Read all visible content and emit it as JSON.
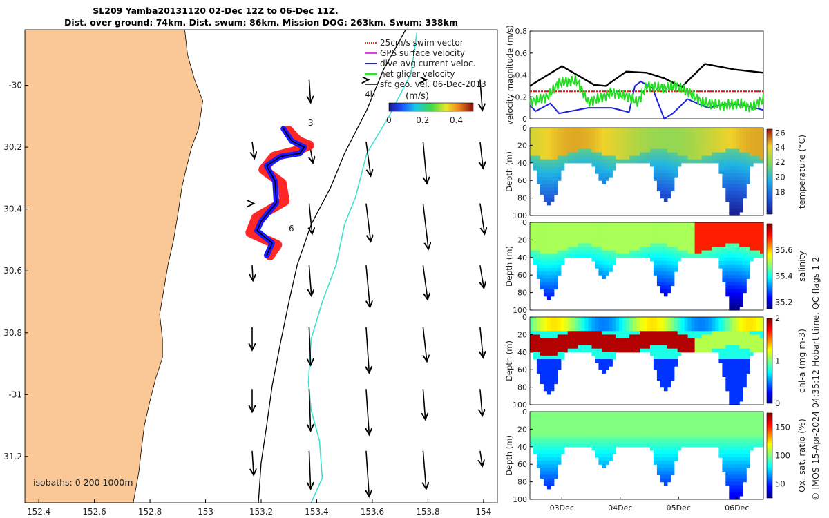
{
  "header": {
    "line1": "SL209 Yamba20131120 02-Dec 12Z to 06-Dec 11Z.",
    "line2": "Dist. over ground: 74km. Dist. swum: 86km. Mission DOG: 263km. Swum: 338km"
  },
  "footer": {
    "credit": "© IMOS 15-Apr-2024 04:35:12 Hobart time. QC flags 1  2"
  },
  "colors": {
    "land": "#f9c896",
    "track_red": "#ff1a1a",
    "track_blue": "#1a1aff",
    "iso200": "#000000",
    "iso1000": "#40e0d0",
    "swim": "#e03030",
    "gps": "#e040e0",
    "net": "#33dd33"
  },
  "chart_data": [
    {
      "id": "map",
      "type": "scatter",
      "title": "",
      "xlabel": "",
      "ylabel": "",
      "xlim": [
        152.35,
        154.05
      ],
      "ylim": [
        -31.35,
        -29.82
      ],
      "xticks": [
        152.4,
        152.6,
        152.8,
        153,
        153.2,
        153.4,
        153.6,
        153.8,
        154
      ],
      "xtick_labels": [
        "152.4",
        "152.6",
        "152.8",
        "153",
        "153.2",
        "153.4",
        "153.6",
        "153.8",
        "154"
      ],
      "yticks": [
        -30,
        -30.2,
        -30.4,
        -30.6,
        -30.8,
        -31,
        -31.2
      ],
      "ytick_labels": [
        "-30",
        "30.2",
        "30.4",
        "30.6",
        "30.8",
        "-31",
        "31.2"
      ],
      "legend": [
        "25cm/s swim vector",
        "GPS surface velocity",
        "dive-avg current veloc.",
        "net glider velocity",
        "sfc geo. vel. 06-Dec-2013"
      ],
      "legend_note": "4h",
      "colorbar": {
        "label": "(m/s)",
        "ticks": [
          "0",
          "0.2",
          "0.4"
        ],
        "range": [
          0,
          0.5
        ]
      },
      "isobath_label": "isobaths: 0   200  1000m",
      "track_labels": [
        "3",
        "6"
      ],
      "track_path": [
        [
          153.28,
          -30.14
        ],
        [
          153.31,
          -30.18
        ],
        [
          153.355,
          -30.2
        ],
        [
          153.34,
          -30.22
        ],
        [
          153.27,
          -30.23
        ],
        [
          153.22,
          -30.26
        ],
        [
          153.25,
          -30.31
        ],
        [
          153.255,
          -30.38
        ],
        [
          153.2,
          -30.44
        ],
        [
          153.185,
          -30.47
        ],
        [
          153.24,
          -30.51
        ],
        [
          153.22,
          -30.55
        ]
      ],
      "track_red_offsets": [
        [
          0.03,
          -0.01
        ],
        [
          0.04,
          0.0
        ],
        [
          0.03,
          0.01
        ],
        [
          -0.02,
          0.015
        ],
        [
          -0.04,
          0.0
        ],
        [
          -0.02,
          -0.02
        ],
        [
          0.04,
          -0.01
        ],
        [
          0.05,
          0.01
        ],
        [
          -0.03,
          0.02
        ],
        [
          -0.04,
          -0.01
        ],
        [
          0.03,
          -0.01
        ],
        [
          0.02,
          0.0
        ]
      ],
      "coast": [
        [
          152.925,
          -29.82
        ],
        [
          152.935,
          -29.9
        ],
        [
          152.96,
          -29.98
        ],
        [
          152.99,
          -30.05
        ],
        [
          152.975,
          -30.14
        ],
        [
          152.95,
          -30.2
        ],
        [
          152.93,
          -30.27
        ],
        [
          152.915,
          -30.33
        ],
        [
          152.9,
          -30.42
        ],
        [
          152.885,
          -30.5
        ],
        [
          152.865,
          -30.58
        ],
        [
          152.85,
          -30.66
        ],
        [
          152.835,
          -30.74
        ],
        [
          152.845,
          -30.82
        ],
        [
          152.845,
          -30.88
        ],
        [
          152.82,
          -30.95
        ],
        [
          152.8,
          -31.02
        ],
        [
          152.78,
          -31.1
        ],
        [
          152.77,
          -31.17
        ],
        [
          152.76,
          -31.25
        ],
        [
          152.74,
          -31.35
        ]
      ],
      "iso200": [
        [
          153.72,
          -29.82
        ],
        [
          153.64,
          -29.95
        ],
        [
          153.58,
          -30.08
        ],
        [
          153.5,
          -30.22
        ],
        [
          153.45,
          -30.33
        ],
        [
          153.38,
          -30.45
        ],
        [
          153.33,
          -30.58
        ],
        [
          153.3,
          -30.7
        ],
        [
          153.27,
          -30.83
        ],
        [
          153.24,
          -30.97
        ],
        [
          153.22,
          -31.1
        ],
        [
          153.2,
          -31.22
        ],
        [
          153.19,
          -31.35
        ]
      ],
      "iso1000": [
        [
          153.76,
          -29.83
        ],
        [
          153.74,
          -29.96
        ],
        [
          153.66,
          -30.1
        ],
        [
          153.58,
          -30.22
        ],
        [
          153.54,
          -30.36
        ],
        [
          153.5,
          -30.45
        ],
        [
          153.47,
          -30.58
        ],
        [
          153.42,
          -30.7
        ],
        [
          153.38,
          -30.82
        ],
        [
          153.37,
          -30.96
        ],
        [
          153.38,
          -31.05
        ],
        [
          153.41,
          -31.15
        ],
        [
          153.42,
          -31.27
        ],
        [
          153.38,
          -31.35
        ]
      ],
      "vectors": {
        "lons": [
          153.0,
          153.2,
          153.4,
          153.6,
          153.8,
          154.0
        ],
        "lats": [
          -30.0,
          -30.2,
          -30.4,
          -30.6,
          -30.8,
          -31.0,
          -31.2
        ],
        "u": [
          [
            0,
            0,
            0.02,
            0.03,
            0.04,
            0.03
          ],
          [
            0,
            0.03,
            0.05,
            0.06,
            0.05,
            0.04
          ],
          [
            0,
            0.02,
            0.04,
            0.06,
            0.07,
            0.06
          ],
          [
            0,
            0.01,
            0.03,
            0.05,
            0.06,
            0.05
          ],
          [
            0,
            0.0,
            0.02,
            0.04,
            0.05,
            0.04
          ],
          [
            0,
            0.0,
            0.02,
            0.04,
            0.03,
            0.03
          ],
          [
            0,
            0.02,
            0.02,
            0.04,
            0.04,
            0.03
          ]
        ],
        "v": [
          [
            0,
            0,
            0.3,
            0.0,
            0.0,
            0.4
          ],
          [
            0,
            0.22,
            0.28,
            0.45,
            0.55,
            0.35
          ],
          [
            0,
            0.0,
            0.4,
            0.5,
            0.6,
            0.4
          ],
          [
            0,
            0.2,
            0.4,
            0.55,
            0.45,
            0.3
          ],
          [
            0,
            0.3,
            0.5,
            0.6,
            0.45,
            0.4
          ],
          [
            0,
            0.3,
            0.55,
            0.6,
            0.4,
            0.35
          ],
          [
            0,
            0.32,
            0.5,
            0.6,
            0.5,
            0.2
          ]
        ]
      }
    },
    {
      "id": "velocity",
      "type": "line",
      "title": "",
      "xlabel": "",
      "ylabel": "velocity magnitude (m/s)",
      "ylim": [
        0,
        0.8
      ],
      "yticks": [
        0,
        0.2,
        0.4,
        0.6,
        0.8
      ],
      "ytick_labels": [
        "0",
        "0.2",
        "0.4",
        "0.6",
        "0.8"
      ],
      "xlim": [
        0,
        4
      ],
      "series": [
        {
          "name": "sfc geo. vel.",
          "color": "#000000",
          "values": [
            [
              0,
              0.3
            ],
            [
              0.55,
              0.48
            ],
            [
              1.1,
              0.31
            ],
            [
              1.3,
              0.3
            ],
            [
              1.65,
              0.43
            ],
            [
              2.0,
              0.42
            ],
            [
              2.3,
              0.37
            ],
            [
              2.6,
              0.29
            ],
            [
              3.0,
              0.5
            ],
            [
              3.5,
              0.45
            ],
            [
              4.0,
              0.42
            ]
          ]
        },
        {
          "name": "25cm/s swim vector",
          "color": "#ff0000",
          "values": [
            [
              0,
              0.25
            ],
            [
              4,
              0.25
            ]
          ]
        },
        {
          "name": "dive-avg current veloc.",
          "color": "#2020e0",
          "values": [
            [
              0,
              0.12
            ],
            [
              0.1,
              0.07
            ],
            [
              0.35,
              0.14
            ],
            [
              0.5,
              0.05
            ],
            [
              1.0,
              0.1
            ],
            [
              1.4,
              0.1
            ],
            [
              1.7,
              0.06
            ],
            [
              1.8,
              0.3
            ],
            [
              1.9,
              0.34
            ],
            [
              2.1,
              0.28
            ],
            [
              2.3,
              0.0
            ],
            [
              2.45,
              0.05
            ],
            [
              2.7,
              0.18
            ],
            [
              3.05,
              0.1
            ],
            [
              3.4,
              0.14
            ],
            [
              3.7,
              0.12
            ],
            [
              4.0,
              0.08
            ]
          ]
        },
        {
          "name": "net glider velocity",
          "color": "#22dd22",
          "values": [
            [
              0,
              0.15
            ],
            [
              0.3,
              0.2
            ],
            [
              0.5,
              0.33
            ],
            [
              0.8,
              0.35
            ],
            [
              1.0,
              0.15
            ],
            [
              1.25,
              0.2
            ],
            [
              1.4,
              0.24
            ],
            [
              1.7,
              0.2
            ],
            [
              1.85,
              0.15
            ],
            [
              2.0,
              0.3
            ],
            [
              2.3,
              0.28
            ],
            [
              2.5,
              0.3
            ],
            [
              2.7,
              0.25
            ],
            [
              2.95,
              0.15
            ],
            [
              3.3,
              0.12
            ],
            [
              3.6,
              0.14
            ],
            [
              3.8,
              0.1
            ],
            [
              4.0,
              0.18
            ]
          ]
        }
      ]
    },
    {
      "id": "temperature",
      "type": "heatmap",
      "ylabel": "Depth (m)",
      "clabel": "temperature (°C)",
      "ylim": [
        0,
        100
      ],
      "yticks": [
        0,
        20,
        40,
        60,
        80,
        100
      ],
      "ytick_labels": [
        "0",
        "20",
        "40",
        "60",
        "80",
        "100"
      ],
      "crange": [
        15,
        26.5
      ],
      "cticks": [
        18,
        20,
        22,
        24,
        26
      ],
      "ctick_labels": [
        "18",
        "20",
        "22",
        "24",
        "26"
      ],
      "palette": "parula"
    },
    {
      "id": "salinity",
      "type": "heatmap",
      "ylabel": "Depth (m)",
      "clabel": "salinity",
      "ylim": [
        0,
        100
      ],
      "yticks": [
        0,
        20,
        40,
        60,
        80,
        100
      ],
      "ytick_labels": [
        "0",
        "20",
        "40",
        "60",
        "80",
        "100"
      ],
      "crange": [
        35.15,
        35.8
      ],
      "cticks": [
        35.2,
        35.4,
        35.6
      ],
      "ctick_labels": [
        "35.2",
        "35.4",
        "35.6"
      ],
      "palette": "jet"
    },
    {
      "id": "chla",
      "type": "heatmap",
      "ylabel": "Depth (m)",
      "clabel": "chl-a (mg m-3)",
      "ylim": [
        0,
        100
      ],
      "yticks": [
        0,
        20,
        40,
        60,
        80,
        100
      ],
      "ytick_labels": [
        "0",
        "20",
        "40",
        "60",
        "80",
        "100"
      ],
      "crange": [
        0,
        2
      ],
      "cticks": [
        0,
        1,
        2
      ],
      "ctick_labels": [
        "0",
        "1",
        "2"
      ],
      "palette": "jet"
    },
    {
      "id": "oxygen",
      "type": "heatmap",
      "ylabel": "Depth (m)",
      "clabel": "Ox. sat. ratio (%)",
      "ylim": [
        0,
        100
      ],
      "yticks": [
        0,
        20,
        40,
        60,
        80,
        100
      ],
      "ytick_labels": [
        "0",
        "20",
        "40",
        "60",
        "80",
        "100"
      ],
      "crange": [
        25,
        175
      ],
      "cticks": [
        50,
        100,
        150
      ],
      "ctick_labels": [
        "50",
        "100",
        "150"
      ],
      "palette": "jet",
      "xticks": [
        "03Dec",
        "04Dec",
        "05Dec",
        "06Dec"
      ]
    }
  ]
}
